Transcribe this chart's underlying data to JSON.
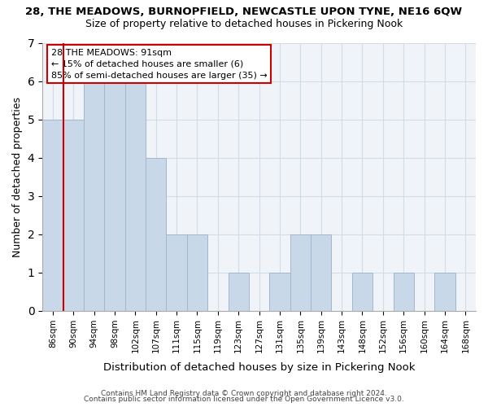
{
  "title": "28, THE MEADOWS, BURNOPFIELD, NEWCASTLE UPON TYNE, NE16 6QW",
  "subtitle": "Size of property relative to detached houses in Pickering Nook",
  "xlabel": "Distribution of detached houses by size in Pickering Nook",
  "ylabel": "Number of detached properties",
  "footer_lines": [
    "Contains HM Land Registry data © Crown copyright and database right 2024.",
    "Contains public sector information licensed under the Open Government Licence v3.0."
  ],
  "bin_labels": [
    "86sqm",
    "90sqm",
    "94sqm",
    "98sqm",
    "102sqm",
    "107sqm",
    "111sqm",
    "115sqm",
    "119sqm",
    "123sqm",
    "127sqm",
    "131sqm",
    "135sqm",
    "139sqm",
    "143sqm",
    "148sqm",
    "152sqm",
    "156sqm",
    "160sqm",
    "164sqm",
    "168sqm"
  ],
  "bar_heights": [
    5,
    5,
    6,
    6,
    6,
    4,
    2,
    2,
    0,
    1,
    0,
    1,
    2,
    2,
    0,
    1,
    0,
    1,
    0,
    1,
    0
  ],
  "bar_color": "#c8d8e8",
  "bar_edge_color": "#a0b8d0",
  "subject_line_label": "90sqm",
  "ylim": [
    0,
    7
  ],
  "yticks": [
    0,
    1,
    2,
    3,
    4,
    5,
    6,
    7
  ],
  "annotation_box_text": "28 THE MEADOWS: 91sqm\n← 15% of detached houses are smaller (6)\n85% of semi-detached houses are larger (35) →",
  "annotation_box_color": "#ffffff",
  "annotation_box_edge_color": "#cc0000",
  "subject_line_color": "#cc0000",
  "grid_color": "#d0dce8",
  "background_color": "#f0f4f8"
}
